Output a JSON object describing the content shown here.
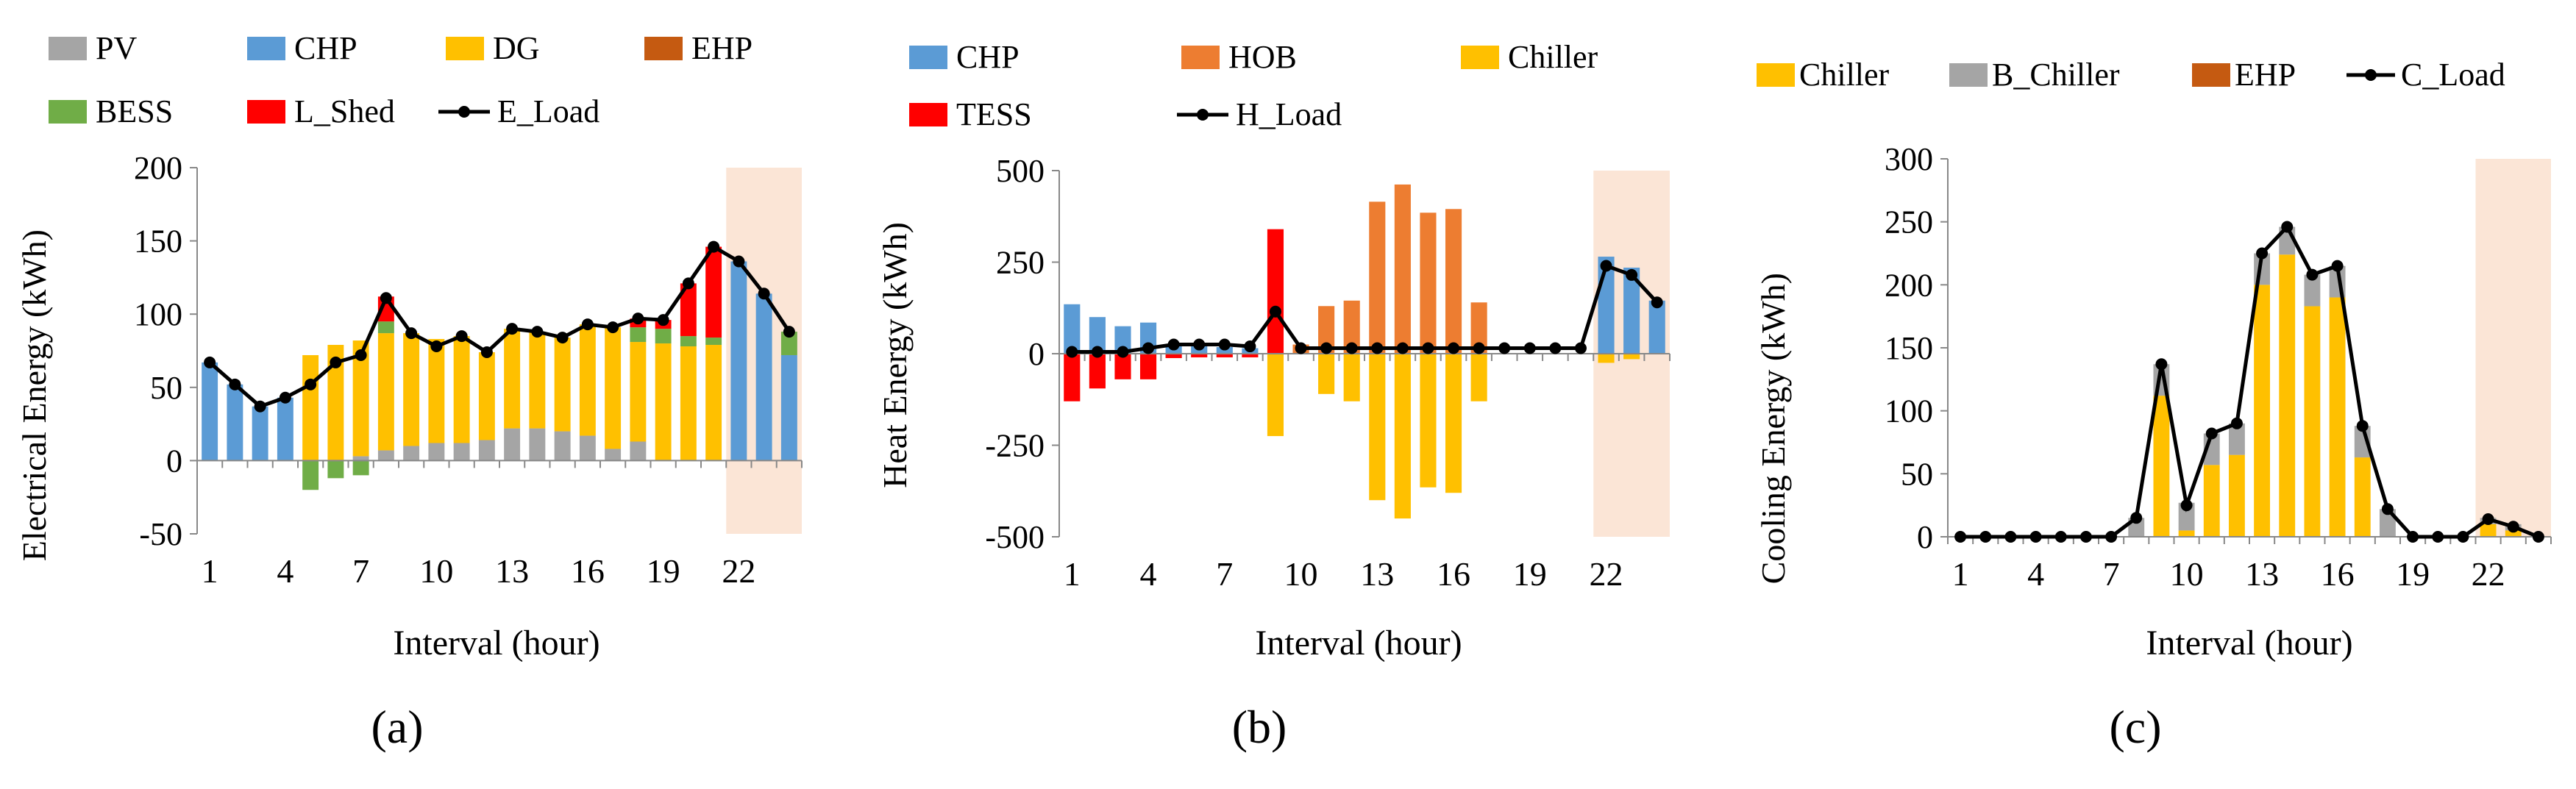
{
  "figure": {
    "panels": [
      {
        "id": "a",
        "panel_label": "(a)",
        "chart_data": {
          "type": "bar",
          "stacked": true,
          "title": "",
          "xlabel": "Interval (hour)",
          "ylabel": "Electrical Energy (kWh)",
          "ylim": [
            -50,
            200
          ],
          "yticks": [
            -50,
            0,
            50,
            100,
            150,
            200
          ],
          "xtick_labels": [
            "1",
            "4",
            "7",
            "10",
            "13",
            "16",
            "19",
            "22"
          ],
          "xtick_positions": [
            1,
            4,
            7,
            10,
            13,
            16,
            19,
            22
          ],
          "categories": [
            1,
            2,
            3,
            4,
            5,
            6,
            7,
            8,
            9,
            10,
            11,
            12,
            13,
            14,
            15,
            16,
            17,
            18,
            19,
            20,
            21,
            22,
            23,
            24
          ],
          "highlight_from_interval": 21.5,
          "legend": [
            "PV",
            "CHP",
            "DG",
            "EHP",
            "BESS",
            "L_Shed",
            "E_Load"
          ],
          "series": [
            {
              "name": "PV",
              "color": "#a5a5a5",
              "values": [
                0,
                0,
                0,
                0,
                0,
                0,
                3,
                7,
                10,
                12,
                12,
                14,
                22,
                22,
                20,
                17,
                8,
                13,
                0,
                0,
                0,
                0,
                0,
                0
              ]
            },
            {
              "name": "CHP",
              "color": "#5b9bd5",
              "values": [
                67,
                52,
                37,
                43,
                0,
                0,
                0,
                0,
                0,
                0,
                0,
                0,
                0,
                0,
                0,
                0,
                0,
                0,
                0,
                0,
                0,
                136,
                114,
                72
              ]
            },
            {
              "name": "DG",
              "color": "#ffc000",
              "values": [
                0,
                0,
                0,
                0,
                72,
                79,
                79,
                80,
                77,
                71,
                73,
                60,
                68,
                66,
                64,
                76,
                83,
                68,
                80,
                78,
                79,
                0,
                0,
                0
              ]
            },
            {
              "name": "EHP",
              "color": "#c55a11",
              "values": [
                0,
                0,
                0,
                0,
                0,
                0,
                0,
                0,
                0,
                0,
                0,
                0,
                0,
                0,
                0,
                0,
                0,
                0,
                0,
                0,
                0,
                0,
                0,
                0
              ]
            },
            {
              "name": "BESS",
              "color": "#70ad47",
              "values": [
                0,
                0,
                0,
                0,
                -20,
                -12,
                -10,
                8,
                0,
                0,
                0,
                0,
                0,
                0,
                0,
                0,
                0,
                10,
                10,
                7,
                5,
                0,
                0,
                16
              ]
            },
            {
              "name": "L_Shed",
              "color": "#ff0000",
              "values": [
                0,
                0,
                0,
                0,
                0,
                0,
                0,
                17,
                0,
                0,
                0,
                0,
                0,
                0,
                0,
                0,
                0,
                6,
                6,
                36,
                62,
                0,
                0,
                0
              ]
            }
          ],
          "line": {
            "name": "E_Load",
            "color": "#000000",
            "values": [
              67,
              52,
              37,
              43,
              52,
              67,
              72,
              111,
              87,
              78,
              85,
              74,
              90,
              88,
              84,
              93,
              91,
              97,
              96,
              121,
              146,
              136,
              114,
              88
            ]
          }
        }
      },
      {
        "id": "b",
        "panel_label": "(b)",
        "chart_data": {
          "type": "bar",
          "stacked": true,
          "title": "",
          "xlabel": "Interval (hour)",
          "ylabel": "Heat Energy (kWh)",
          "ylim": [
            -500,
            500
          ],
          "yticks": [
            -500,
            -250,
            0,
            250,
            500
          ],
          "xtick_labels": [
            "1",
            "4",
            "7",
            "10",
            "13",
            "16",
            "19",
            "22"
          ],
          "xtick_positions": [
            1,
            4,
            7,
            10,
            13,
            16,
            19,
            22
          ],
          "categories": [
            1,
            2,
            3,
            4,
            5,
            6,
            7,
            8,
            9,
            10,
            11,
            12,
            13,
            14,
            15,
            16,
            17,
            18,
            19,
            20,
            21,
            22,
            23,
            24
          ],
          "highlight_from_interval": 21.5,
          "legend": [
            "CHP",
            "HOB",
            "Chiller",
            "TESS",
            "H_Load"
          ],
          "series": [
            {
              "name": "CHP",
              "color": "#5b9bd5",
              "values": [
                135,
                100,
                75,
                85,
                25,
                22,
                18,
                15,
                0,
                0,
                0,
                0,
                0,
                0,
                0,
                0,
                0,
                0,
                0,
                0,
                0,
                265,
                235,
                145
              ]
            },
            {
              "name": "HOB",
              "color": "#ed7d31",
              "values": [
                0,
                0,
                0,
                0,
                0,
                0,
                0,
                0,
                0,
                25,
                130,
                145,
                415,
                462,
                385,
                395,
                140,
                0,
                0,
                0,
                0,
                0,
                0,
                0
              ]
            },
            {
              "name": "Chiller",
              "color": "#ffc000",
              "values": [
                0,
                0,
                0,
                0,
                0,
                0,
                0,
                0,
                -225,
                0,
                -110,
                -130,
                -400,
                -450,
                -365,
                -380,
                -130,
                0,
                0,
                0,
                0,
                -25,
                -15,
                0
              ]
            },
            {
              "name": "TESS",
              "color": "#ff0000",
              "values": [
                -130,
                -95,
                -70,
                -70,
                -12,
                -10,
                -10,
                -10,
                340,
                0,
                0,
                0,
                0,
                0,
                0,
                0,
                0,
                0,
                0,
                0,
                0,
                0,
                0,
                0
              ]
            }
          ],
          "line": {
            "name": "H_Load",
            "color": "#000000",
            "values": [
              5,
              5,
              5,
              15,
              25,
              25,
              25,
              20,
              115,
              15,
              15,
              15,
              15,
              15,
              15,
              15,
              15,
              15,
              15,
              15,
              15,
              240,
              215,
              140
            ]
          }
        }
      },
      {
        "id": "c",
        "panel_label": "(c)",
        "chart_data": {
          "type": "bar",
          "stacked": true,
          "title": "",
          "xlabel": "Interval (hour)",
          "ylabel": "Cooling Energy (kWh)",
          "ylim": [
            0,
            300
          ],
          "yticks": [
            0,
            50,
            100,
            150,
            200,
            250,
            300
          ],
          "xtick_labels": [
            "1",
            "4",
            "7",
            "10",
            "13",
            "16",
            "19",
            "22"
          ],
          "xtick_positions": [
            1,
            4,
            7,
            10,
            13,
            16,
            19,
            22
          ],
          "categories": [
            1,
            2,
            3,
            4,
            5,
            6,
            7,
            8,
            9,
            10,
            11,
            12,
            13,
            14,
            15,
            16,
            17,
            18,
            19,
            20,
            21,
            22,
            23,
            24
          ],
          "highlight_from_interval": 21.5,
          "legend": [
            "Chiller",
            "B_Chiller",
            "EHP",
            "C_Load"
          ],
          "series": [
            {
              "name": "Chiller",
              "color": "#ffc000",
              "values": [
                0,
                0,
                0,
                0,
                0,
                0,
                0,
                0,
                112,
                5,
                57,
                65,
                200,
                224,
                183,
                190,
                63,
                0,
                0,
                0,
                0,
                10,
                5,
                0
              ]
            },
            {
              "name": "B_Chiller",
              "color": "#a5a5a5",
              "values": [
                0,
                0,
                0,
                0,
                0,
                0,
                0,
                15,
                25,
                22,
                25,
                25,
                25,
                22,
                25,
                25,
                25,
                22,
                0,
                0,
                0,
                5,
                5,
                0
              ]
            },
            {
              "name": "EHP",
              "color": "#c55a11",
              "values": [
                0,
                0,
                0,
                0,
                0,
                0,
                0,
                0,
                0,
                0,
                0,
                0,
                0,
                0,
                0,
                0,
                0,
                0,
                0,
                0,
                0,
                0,
                0,
                0
              ]
            }
          ],
          "line": {
            "name": "C_Load",
            "color": "#000000",
            "values": [
              0,
              0,
              0,
              0,
              0,
              0,
              0,
              15,
              137,
              25,
              82,
              90,
              225,
              246,
              208,
              215,
              88,
              22,
              0,
              0,
              0,
              14,
              8,
              0
            ]
          }
        }
      }
    ]
  }
}
